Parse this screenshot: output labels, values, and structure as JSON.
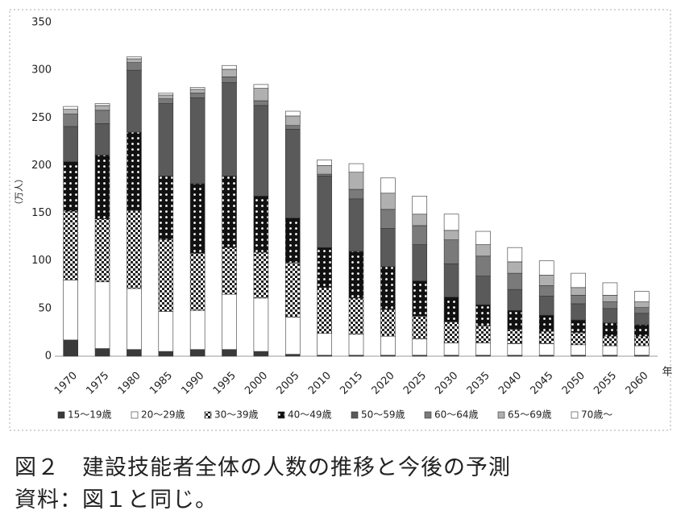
{
  "chart_data": {
    "type": "stacked_bar",
    "y_label": "（万人）",
    "x_label": "年",
    "categories": [
      "1970",
      "1975",
      "1980",
      "1985",
      "1990",
      "1995",
      "2000",
      "2005",
      "2010",
      "2015",
      "2020",
      "2025",
      "2030",
      "2035",
      "2040",
      "2045",
      "2050",
      "2055",
      "2060"
    ],
    "series": [
      {
        "name": "15～19歳",
        "color": "#3a3a3a",
        "values": [
          17,
          8,
          7,
          5,
          7,
          7,
          5,
          2,
          1,
          1,
          1,
          1,
          1,
          1,
          1,
          1,
          1,
          1,
          1
        ]
      },
      {
        "name": "20～29歳",
        "color": "#ffffff",
        "values": [
          63,
          70,
          64,
          42,
          41,
          58,
          56,
          39,
          23,
          22,
          20,
          17,
          13,
          13,
          12,
          12,
          11,
          10,
          10
        ]
      },
      {
        "name": "30～39歳",
        "color": "#ffffff",
        "pattern": "checker",
        "values": [
          72,
          66,
          82,
          75,
          60,
          49,
          48,
          57,
          48,
          38,
          28,
          24,
          22,
          18,
          15,
          13,
          13,
          10,
          10
        ]
      },
      {
        "name": "40～49歳",
        "color": "#111111",
        "pattern": "dots",
        "values": [
          52,
          67,
          82,
          67,
          73,
          75,
          59,
          47,
          42,
          49,
          45,
          37,
          26,
          22,
          20,
          17,
          13,
          14,
          12
        ]
      },
      {
        "name": "50～59歳",
        "color": "#5a5a5a",
        "values": [
          37,
          33,
          65,
          76,
          90,
          98,
          95,
          93,
          75,
          55,
          40,
          38,
          35,
          30,
          22,
          20,
          17,
          15,
          12
        ]
      },
      {
        "name": "60～64歳",
        "color": "#7a7a7a",
        "values": [
          13,
          14,
          8,
          5,
          5,
          6,
          5,
          4,
          2,
          10,
          20,
          20,
          25,
          21,
          17,
          11,
          9,
          7,
          6
        ]
      },
      {
        "name": "65～69歳",
        "color": "#b0b0b0",
        "values": [
          5,
          5,
          4,
          4,
          4,
          8,
          13,
          10,
          9,
          18,
          17,
          12,
          10,
          12,
          12,
          11,
          8,
          7,
          6
        ]
      },
      {
        "name": "70歳～",
        "color": "#ffffff",
        "values": [
          3,
          2,
          2,
          2,
          2,
          4,
          4,
          5,
          6,
          9,
          16,
          19,
          17,
          14,
          15,
          15,
          15,
          13,
          11
        ]
      }
    ],
    "ylim": [
      0,
      350
    ],
    "yticks": [
      0,
      50,
      100,
      150,
      200,
      250,
      300,
      350
    ],
    "grid": false
  },
  "caption": {
    "title": "図２　建設技能者全体の人数の推移と今後の予測",
    "source": "資料：図１と同じ。"
  }
}
